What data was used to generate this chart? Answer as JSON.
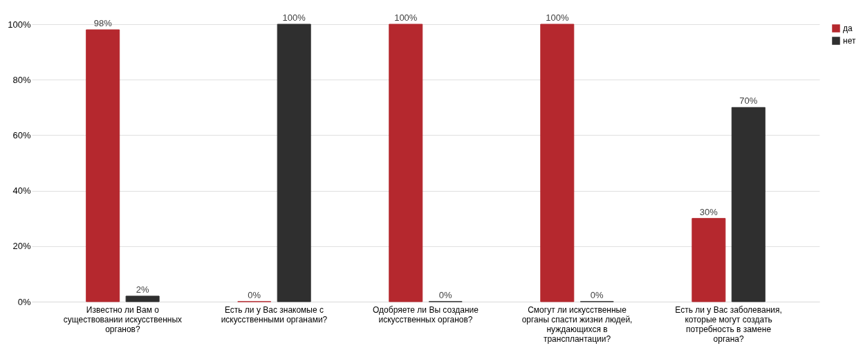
{
  "chart_data": {
    "type": "bar",
    "categories": [
      "Известно ли Вам о существовании искусственных органов?",
      "Есть ли у Вас знакомые с искусственными органами?",
      "Одобряете ли Вы создание искусственных органов?",
      "Смогут ли искусственные органы спасти жизни людей, нуждающихся в трансплантации?",
      "Есть ли у Вас заболевания, которые могут создать потребность в замене органа?"
    ],
    "series": [
      {
        "name": "да",
        "color": "#b5282e",
        "values": [
          98,
          0,
          100,
          100,
          30
        ],
        "value_labels": [
          "98%",
          "0%",
          "100%",
          "100%",
          "30%"
        ]
      },
      {
        "name": "нет",
        "color": "#2f2f2f",
        "values": [
          2,
          100,
          0,
          0,
          70
        ],
        "value_labels": [
          "2%",
          "100%",
          "0%",
          "0%",
          "70%"
        ]
      }
    ],
    "ylim": [
      0,
      100
    ],
    "yticks": [
      {
        "value": 0,
        "label": "0%"
      },
      {
        "value": 20,
        "label": "20%"
      },
      {
        "value": 40,
        "label": "40%"
      },
      {
        "value": 60,
        "label": "60%"
      },
      {
        "value": 80,
        "label": "80%"
      },
      {
        "value": 100,
        "label": "100%"
      }
    ],
    "grid": "y",
    "legend": "right"
  }
}
